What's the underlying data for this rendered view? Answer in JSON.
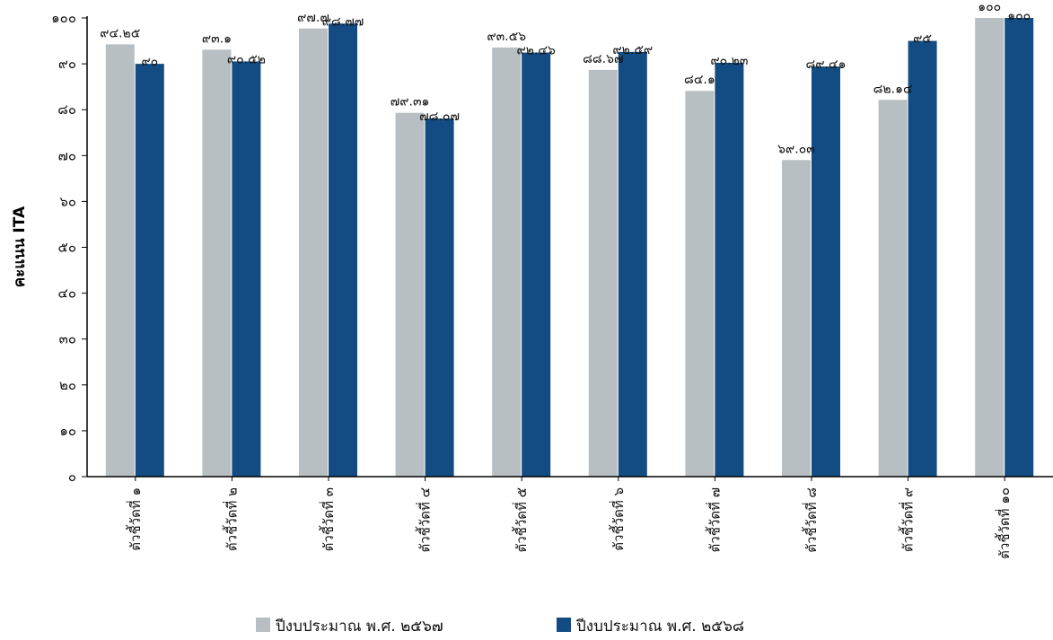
{
  "chart_data": {
    "type": "bar",
    "categories": [
      "ตัวชี้วัดที่ ๑",
      "ตัวชี้วัดที่ ๒",
      "ตัวชี้วัดที่ ๓",
      "ตัวชี้วัดที่ ๔",
      "ตัวชี้วัดที่ ๕",
      "ตัวชี้วัดที่ ๖",
      "ตัวชี้วัดที่ ๗",
      "ตัวชี้วัดที่ ๘",
      "ตัวชี้วัดที่ ๙",
      "ตัวชี้วัดที่ ๑๐"
    ],
    "series": [
      {
        "name": "ปีงบประมาณ พ.ศ. ๒๕๖๗",
        "color": "#b7bfc2",
        "values": [
          94.25,
          93.1,
          97.7,
          79.31,
          93.56,
          88.67,
          84.1,
          69.03,
          82.14,
          100
        ],
        "value_labels": [
          "๙๔.๒๕",
          "๙๓.๑",
          "๙๗.๗",
          "๗๙.๓๑",
          "๙๓.๕๖",
          "๘๘.๖๗",
          "๘๔.๑",
          "๖๙.๐๓",
          "๘๒.๑๔",
          "๑๐๐"
        ]
      },
      {
        "name": "ปีงบประมาณ พ.ศ. ๒๕๖๘",
        "color": "#124c82",
        "values": [
          90,
          90.52,
          98.77,
          78.07,
          92.46,
          92.59,
          90.23,
          89.41,
          95,
          100
        ],
        "value_labels": [
          "๙๐",
          "๙๐.๕๒",
          "๙๘.๗๗",
          "๗๘.๐๗",
          "๙๒.๔๖",
          "๙๒.๕๙",
          "๙๐.๒๓",
          "๘๙.๔๑",
          "๙๕",
          "๑๐๐"
        ]
      }
    ],
    "ylabel": "คะแนน ITA",
    "xlabel": "",
    "title": "",
    "ylim": [
      0,
      100
    ],
    "yticks": [
      0,
      10,
      20,
      30,
      40,
      50,
      60,
      70,
      80,
      90,
      100
    ],
    "ytick_labels": [
      "๐",
      "๑๐",
      "๒๐",
      "๓๐",
      "๔๐",
      "๕๐",
      "๖๐",
      "๗๐",
      "๘๐",
      "๙๐",
      "๑๐๐"
    ],
    "grid": false,
    "legend_position": "bottom"
  }
}
